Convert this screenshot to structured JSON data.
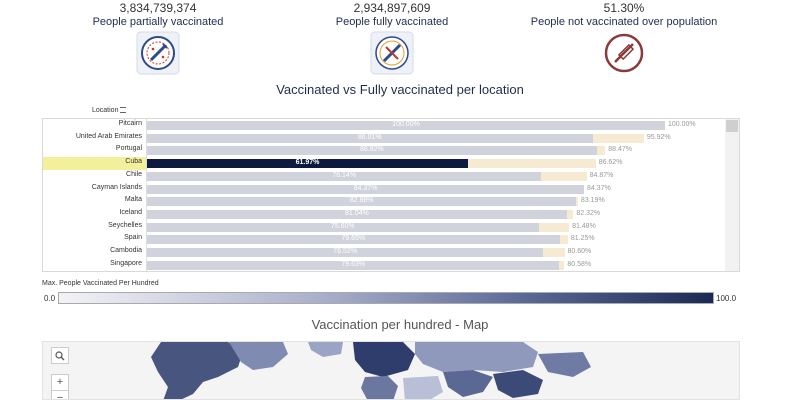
{
  "kpis": {
    "partial": {
      "value": "3,834,739,374",
      "label": "People partially vaccinated",
      "icon": "vaccination-badge-icon"
    },
    "full": {
      "value": "2,934,897,609",
      "label": "People fully vaccinated",
      "icon": "fully-vaccinated-badge-icon"
    },
    "not": {
      "value": "51.30%",
      "label": "People not vaccinated over population",
      "icon": "no-vaccine-icon"
    }
  },
  "bar_chart": {
    "title": "Vaccinated vs Fully vaccinated per location",
    "location_header": "Location",
    "selected": "Cuba"
  },
  "chart_data": {
    "type": "bar",
    "categories": [
      "Pitcairn",
      "United Arab Emirates",
      "Portugal",
      "Cuba",
      "Chile",
      "Cayman Islands",
      "Malta",
      "Iceland",
      "Seychelles",
      "Spain",
      "Cambodia",
      "Singapore"
    ],
    "series": [
      {
        "values": [
          100.0,
          86.01,
          86.82,
          61.97,
          76.14,
          84.37,
          82.88,
          81.04,
          75.6,
          79.65,
          76.52,
          79.63
        ],
        "labels": [
          "100.00%",
          "86.01%",
          "86.82%",
          "61.97%",
          "76.14%",
          "84.37%",
          "82.88%",
          "81.04%",
          "75.60%",
          "79.65%",
          "76.52%",
          "79.63%"
        ]
      },
      {
        "values": [
          100.0,
          95.92,
          88.47,
          86.62,
          84.87,
          84.37,
          83.19,
          82.32,
          81.48,
          81.25,
          80.6,
          80.58
        ],
        "labels": [
          "100.00%",
          "95.92%",
          "88.47%",
          "86.62%",
          "84.87%",
          "84.37%",
          "83.19%",
          "82.32%",
          "81.48%",
          "81.25%",
          "80.60%",
          "80.58%"
        ]
      }
    ],
    "colors": {
      "vaccinated": "#d1d3dc",
      "fully": "#f7ead2",
      "selected": "#0d1a40"
    },
    "xlim": [
      0,
      100
    ]
  },
  "legend": {
    "title": "Max. People Vaccinated Per Hundred",
    "min": "0.0",
    "max": "100.0",
    "colors": [
      "#f3f3f7",
      "#1a2a55"
    ]
  },
  "map": {
    "title": "Vaccination per hundred - Map",
    "search_icon": "search-icon",
    "zoom_in": "+",
    "zoom_out": "−"
  }
}
